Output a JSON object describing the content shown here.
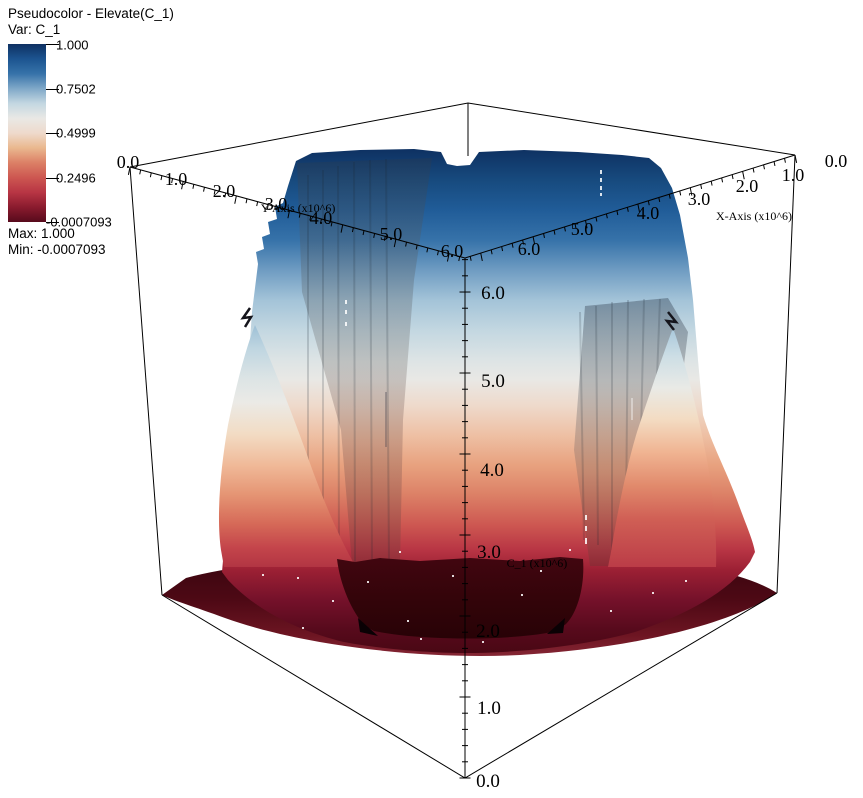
{
  "viewport": {
    "background": "#ffffff",
    "wireframe_color": "#000000"
  },
  "legend": {
    "title": "Pseudocolor - Elevate(C_1)",
    "var_label": "Var: C_1",
    "tick_values": [
      "1.000",
      "0.7502",
      "0.4999",
      "0.2496",
      "-0.0007093"
    ],
    "max_label": "Max: 1.000",
    "min_label": "Min: -0.0007093"
  },
  "axes": {
    "x": {
      "title": "X-Axis (x10^6)",
      "tick_labels": [
        "0.0",
        "1.0",
        "2.0",
        "3.0",
        "4.0",
        "5.0",
        "6.0"
      ]
    },
    "y": {
      "title": "Y-Axis (x10^6)",
      "tick_labels": [
        "0.0",
        "1.0",
        "2.0",
        "3.0",
        "4.0",
        "5.0",
        "6.0"
      ]
    },
    "z": {
      "title": "C_1 (x10^6)",
      "tick_labels": [
        "0.0",
        "1.0",
        "2.0",
        "3.0",
        "4.0",
        "5.0",
        "6.0"
      ]
    }
  },
  "chart_data": {
    "type": "heatmap",
    "subtype": "3d-pseudocolor-elevated-surface",
    "title": "Pseudocolor - Elevate(C_1)",
    "variable": "C_1",
    "value_min": -0.0007093,
    "value_max": 1.0,
    "colorbar_tick_values": [
      1.0,
      0.7502,
      0.4999,
      0.2496,
      -0.0007093
    ],
    "colormap_top_to_bottom": [
      "#0e3162",
      "#1c5490",
      "#3672a9",
      "#7fa8c8",
      "#c3d7e1",
      "#e9e8e5",
      "#eedacc",
      "#eab88f",
      "#dc8066",
      "#cd5751",
      "#b83544",
      "#8a1b2e",
      "#570a1c"
    ],
    "axis_ranges": {
      "x": [
        0,
        6.3
      ],
      "y": [
        0,
        6.3
      ],
      "z": [
        0,
        6.3
      ]
    },
    "axis_tick_step": 1.0,
    "axis_minor_tick_step": 0.2,
    "axis_scale_note": "x10^6",
    "scene": "Flat-topped dome surface colored by C_1: ~1.0 (dark blue) on top descending through ~0.5 (white) to ~0 (dark red) at a dark-red floor disk inside a wireframe box; two pale parabolic sheet lobes flank the front left and right."
  }
}
